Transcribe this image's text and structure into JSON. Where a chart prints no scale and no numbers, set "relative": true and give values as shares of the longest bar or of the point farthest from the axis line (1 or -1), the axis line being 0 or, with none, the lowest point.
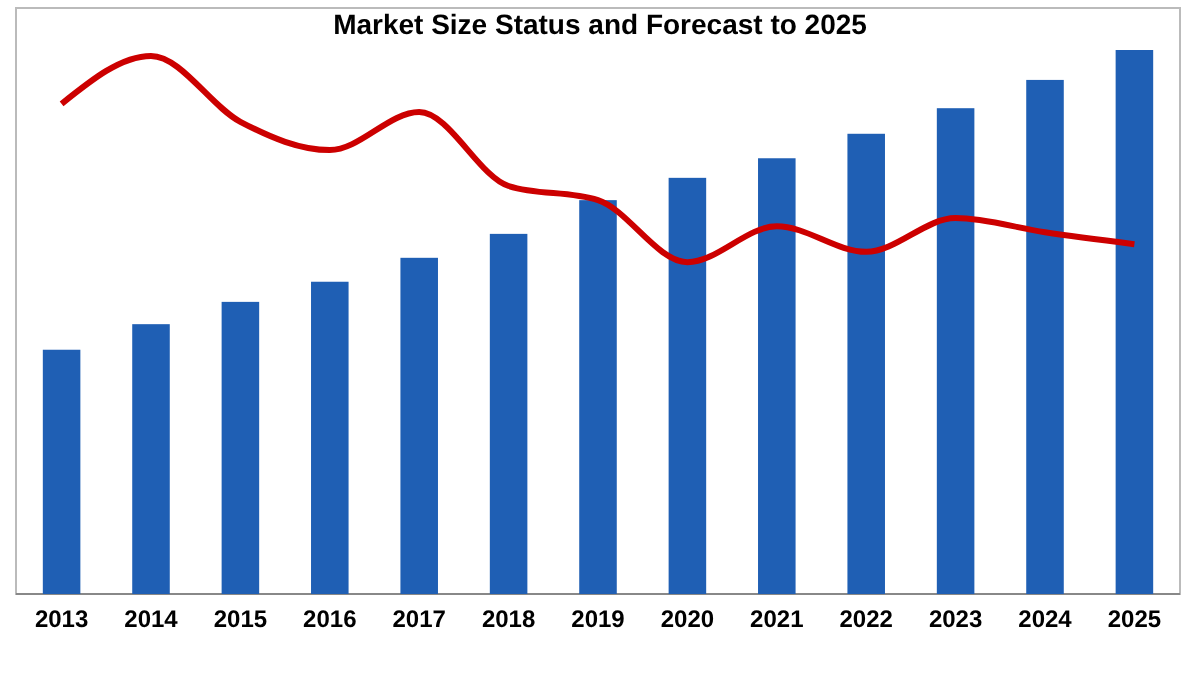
{
  "chart_data": {
    "type": "bar",
    "title": "Market Size Status and Forecast to 2025",
    "relative": true,
    "categories": [
      "2013",
      "2014",
      "2015",
      "2016",
      "2017",
      "2018",
      "2019",
      "2020",
      "2021",
      "2022",
      "2023",
      "2024",
      "2025"
    ],
    "series": [
      {
        "color": "#1f5fb4",
        "values": [
          0.449,
          0.496,
          0.537,
          0.574,
          0.618,
          0.662,
          0.724,
          0.765,
          0.801,
          0.846,
          0.893,
          0.945,
          1
        ]
      },
      {
        "type": "line",
        "color": "#cc0000",
        "values": [
          0.901,
          0.989,
          0.868,
          0.816,
          0.886,
          0.75,
          0.724,
          0.61,
          0.676,
          0.629,
          0.691,
          0.665,
          0.643
        ]
      }
    ],
    "marker": "none",
    "line_style": "solid"
  }
}
